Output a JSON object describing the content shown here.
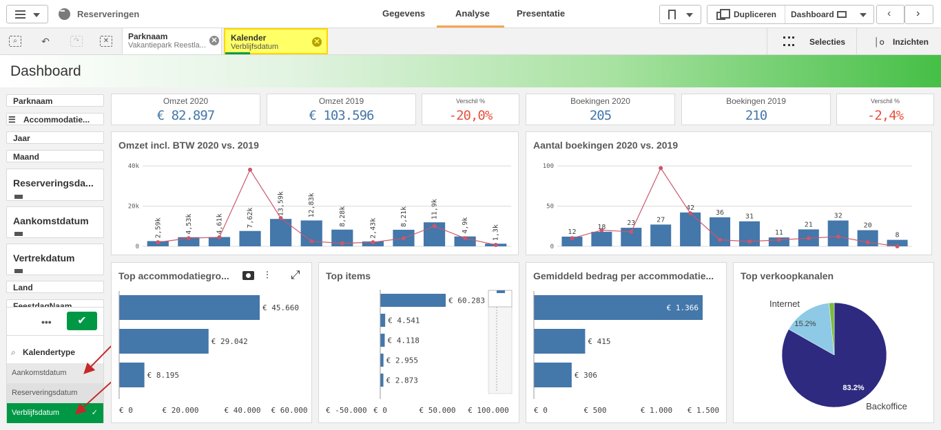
{
  "app": {
    "title": "Reserveringen"
  },
  "nav": {
    "tabs": [
      "Gegevens",
      "Analyse",
      "Presentatie"
    ]
  },
  "toolbar": {
    "duplicate": "Dupliceren",
    "sheet": "Dashboard"
  },
  "selections": {
    "chips": [
      {
        "title": "Parknaam",
        "value": "Vakantiepark Reestla..."
      },
      {
        "title": "Kalender",
        "value": "Verblijfsdatum"
      }
    ],
    "selecties": "Selecties",
    "inzichten": "Inzichten"
  },
  "page": {
    "title": "Dashboard"
  },
  "filters": [
    "Parknaam",
    "Accommodatie...",
    "Jaar",
    "Maand",
    "Reserveringsda...",
    "Aankomstdatum",
    "Vertrekdatum",
    "Land",
    "FeestdagNaam"
  ],
  "listbox": {
    "title": "Kalendertype",
    "items": [
      "Aankomstdatum",
      "Reserveringsdatum",
      "Verblijfsdatum"
    ],
    "selected": "Verblijfsdatum",
    "dots": "•••",
    "ok": "✔"
  },
  "kpis": [
    {
      "label": "Omzet 2020",
      "value": "€ 82.897"
    },
    {
      "label": "Omzet 2019",
      "value": "€ 103.596"
    },
    {
      "label": "Verschil %",
      "value": "-20,0%"
    },
    {
      "label": "Boekingen 2020",
      "value": "205"
    },
    {
      "label": "Boekingen 2019",
      "value": "210"
    },
    {
      "label": "Verschil %",
      "value": "-2,4%"
    }
  ],
  "charts": {
    "omzet": {
      "title": "Omzet incl. BTW 2020 vs. 2019"
    },
    "boekingen": {
      "title": "Aantal boekingen 2020 vs. 2019"
    },
    "accgroep": {
      "title": "Top accommodatiegro..."
    },
    "items": {
      "title": "Top items"
    },
    "gemiddeld": {
      "title": "Gemiddeld bedrag per accommodatie..."
    },
    "kanalen": {
      "title": "Top verkoopkanalen"
    }
  },
  "chart_data": [
    {
      "type": "bar",
      "title": "Omzet incl. BTW 2020 vs. 2019",
      "yticks": [
        "0",
        "20k",
        "40k"
      ],
      "ylim": [
        0,
        42000
      ],
      "series": [
        {
          "values": [
            2590,
            4530,
            4610,
            7620,
            13590,
            12830,
            8280,
            2430,
            8210,
            11900,
            4900,
            1300
          ],
          "labels": [
            "2,59k",
            "4,53k",
            "4,61k",
            "7,62k",
            "13,59k",
            "12,83k",
            "8,28k",
            "2,43k",
            "8,21k",
            "11,9k",
            "4,9k",
            "1,3k"
          ]
        },
        {
          "values": [
            2000,
            4000,
            4500,
            38000,
            14000,
            2500,
            1500,
            2000,
            4000,
            10000,
            4000,
            700
          ]
        }
      ]
    },
    {
      "type": "bar",
      "title": "Aantal boekingen 2020 vs. 2019",
      "yticks": [
        "0",
        "50",
        "100"
      ],
      "ylim": [
        0,
        105
      ],
      "series": [
        {
          "values": [
            12,
            18,
            23,
            27,
            42,
            36,
            31,
            11,
            21,
            32,
            20,
            8
          ],
          "labels": [
            "12",
            "18",
            "23",
            "27",
            "42",
            "36",
            "31",
            "11",
            "21",
            "32",
            "20",
            "8"
          ]
        },
        {
          "values": [
            10,
            20,
            18,
            97,
            41,
            8,
            6,
            8,
            10,
            12,
            5,
            0
          ]
        }
      ]
    },
    {
      "type": "bar",
      "title": "Top accommodatiegro...",
      "values": [
        45660,
        29042,
        8195
      ],
      "labels": [
        "€ 45.660",
        "€ 29.042",
        "€ 8.195"
      ],
      "xticks": [
        "€ 0",
        "€ 20.000",
        "€ 40.000",
        "€ 60.000"
      ]
    },
    {
      "type": "bar",
      "title": "Top items",
      "values": [
        60283,
        4541,
        4118,
        2955,
        2873
      ],
      "labels": [
        "€ 60.283",
        "€ 4.541",
        "€ 4.118",
        "€ 2.955",
        "€ 2.873"
      ],
      "xticks": [
        "€ -50.000",
        "€ 0",
        "€ 50.000",
        "€ 100.000"
      ]
    },
    {
      "type": "bar",
      "title": "Gemiddeld bedrag per accommodatie...",
      "values": [
        1366,
        415,
        306
      ],
      "labels": [
        "€ 1.366",
        "€ 415",
        "€ 306"
      ],
      "xticks": [
        "€ 0",
        "€ 500",
        "€ 1.000",
        "€ 1.500"
      ]
    },
    {
      "type": "pie",
      "title": "Top verkoopkanalen",
      "slices": [
        {
          "name": "Backoffice",
          "value": 83.2,
          "label": "83.2%"
        },
        {
          "name": "Internet",
          "value": 15.2,
          "label": "15.2%"
        },
        {
          "name": "",
          "value": 1.6,
          "label": ""
        }
      ]
    }
  ],
  "colors": {
    "bar": "#4477aa",
    "line": "#c9586c",
    "green": "#009845",
    "pieDark": "#2d2a7f",
    "pieLight": "#8ecae6",
    "pieSmall": "#7dbb42"
  }
}
